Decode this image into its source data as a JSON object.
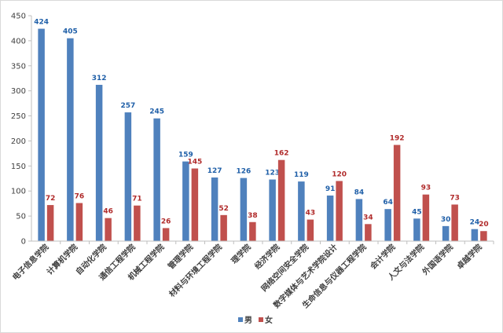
{
  "chart_data": {
    "type": "bar",
    "categories": [
      "电子信息学院",
      "计算机学院",
      "自动化学院",
      "通信工程学院",
      "机械工程学院",
      "管理学院",
      "材料与环境工程学院",
      "理学院",
      "经济学院",
      "网络空间安全学院",
      "数字媒体与艺术学院设计",
      "生命信息与仪器工程学院",
      "会计学院",
      "人文与法学院",
      "外国语学院",
      "卓越学院"
    ],
    "series": [
      {
        "name": "男",
        "color": "#4f81bd",
        "label_color": "#1f5fa8",
        "values": [
          424,
          405,
          312,
          257,
          245,
          159,
          127,
          126,
          123,
          119,
          91,
          84,
          64,
          45,
          30,
          24
        ]
      },
      {
        "name": "女",
        "color": "#c0504d",
        "label_color": "#b02a2a",
        "values": [
          72,
          76,
          46,
          71,
          26,
          145,
          52,
          38,
          162,
          43,
          120,
          34,
          192,
          93,
          73,
          20
        ]
      }
    ],
    "yticks": [
      "0",
      "50",
      "100",
      "150",
      "200",
      "250",
      "300",
      "350",
      "400",
      "450"
    ],
    "ylim": [
      0,
      450
    ],
    "grid": false,
    "legend": "bottom"
  }
}
